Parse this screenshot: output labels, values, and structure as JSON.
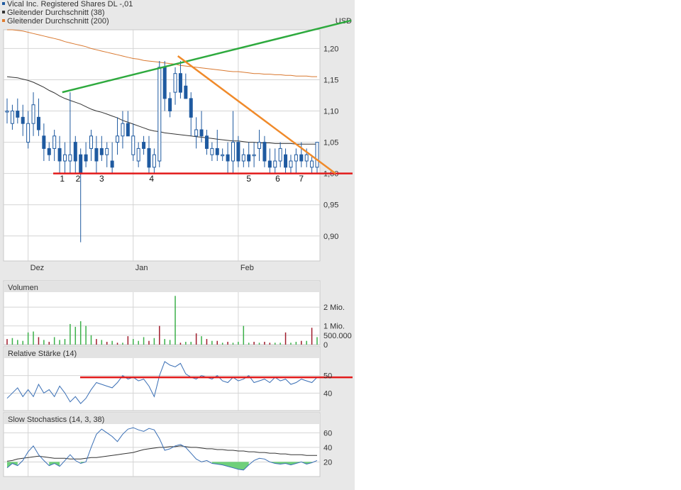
{
  "legend": [
    {
      "label": "Vical Inc. Registered Shares DL -,01",
      "color": "#1f5aa0"
    },
    {
      "label": "Gleitender Durchschnitt (38)",
      "color": "#333333"
    },
    {
      "label": "Gleitender Durchschnitt (200)",
      "color": "#e07b2e"
    }
  ],
  "currency": "USD",
  "colors": {
    "price": "#1f5aa0",
    "ma38": "#333333",
    "ma200": "#d9782f",
    "trend_green": "#2eaa3e",
    "trend_orange": "#f08a2a",
    "support_red": "#e21b1b",
    "volume_up": "#3cb04a",
    "volume_down": "#a01c2c",
    "rsi": "#3a6fb5",
    "stoch_k": "#3a6fb5",
    "stoch_d": "#333333",
    "stoch_fill": "#6fd07a",
    "panel_bg": "#f0f0f0",
    "grid": "#d4d4d4"
  },
  "chart_data": [
    {
      "type": "candlestick",
      "title": "Vical Inc. Registered Shares DL -,01",
      "x_tick_labels": [
        "Dez",
        "Jan",
        "Feb"
      ],
      "y_ticks": [
        0.9,
        0.95,
        1.0,
        1.05,
        1.1,
        1.15,
        1.2
      ],
      "y_tick_labels": [
        "0,90",
        "0,95",
        "1,00",
        "1,05",
        "1,10",
        "1,15",
        "1,20"
      ],
      "ylim": [
        0.86,
        1.23
      ],
      "n_days": 60,
      "candles": [
        [
          1.1,
          1.12,
          1.08,
          1.1
        ],
        [
          1.08,
          1.11,
          1.07,
          1.1
        ],
        [
          1.1,
          1.12,
          1.08,
          1.09
        ],
        [
          1.09,
          1.11,
          1.06,
          1.08
        ],
        [
          1.05,
          1.1,
          1.04,
          1.08
        ],
        [
          1.08,
          1.13,
          1.06,
          1.11
        ],
        [
          1.09,
          1.12,
          1.06,
          1.07
        ],
        [
          1.06,
          1.08,
          1.02,
          1.04
        ],
        [
          1.04,
          1.05,
          1.02,
          1.03
        ],
        [
          1.04,
          1.07,
          1.02,
          1.06
        ],
        [
          1.04,
          1.06,
          1.0,
          1.02
        ],
        [
          1.02,
          1.05,
          1.0,
          1.03
        ],
        [
          1.02,
          1.13,
          1.0,
          1.03
        ],
        [
          1.05,
          1.06,
          1.0,
          1.02
        ],
        [
          1.03,
          1.04,
          0.89,
          1.0
        ],
        [
          1.03,
          1.05,
          1.01,
          1.02
        ],
        [
          1.04,
          1.07,
          1.02,
          1.06
        ],
        [
          1.04,
          1.06,
          1.0,
          1.02
        ],
        [
          1.04,
          1.06,
          1.02,
          1.03
        ],
        [
          1.03,
          1.05,
          1.01,
          1.04
        ],
        [
          1.02,
          1.05,
          1.0,
          1.01
        ],
        [
          1.05,
          1.09,
          1.03,
          1.06
        ],
        [
          1.06,
          1.1,
          1.04,
          1.08
        ],
        [
          1.08,
          1.1,
          1.06,
          1.06
        ],
        [
          1.03,
          1.08,
          1.02,
          1.06
        ],
        [
          1.02,
          1.05,
          1.01,
          1.04
        ],
        [
          1.05,
          1.06,
          1.03,
          1.04
        ],
        [
          1.04,
          1.06,
          1.0,
          1.01
        ],
        [
          1.01,
          1.04,
          1.0,
          1.03
        ],
        [
          1.02,
          1.18,
          1.01,
          1.17
        ],
        [
          1.17,
          1.18,
          1.1,
          1.12
        ],
        [
          1.12,
          1.13,
          1.09,
          1.1
        ],
        [
          1.13,
          1.17,
          1.11,
          1.16
        ],
        [
          1.16,
          1.18,
          1.12,
          1.13
        ],
        [
          1.14,
          1.16,
          1.12,
          1.12
        ],
        [
          1.12,
          1.13,
          1.06,
          1.09
        ],
        [
          1.06,
          1.09,
          1.04,
          1.07
        ],
        [
          1.07,
          1.1,
          1.05,
          1.06
        ],
        [
          1.06,
          1.07,
          1.03,
          1.04
        ],
        [
          1.03,
          1.05,
          1.02,
          1.04
        ],
        [
          1.04,
          1.07,
          1.02,
          1.03
        ],
        [
          1.03,
          1.04,
          1.02,
          1.03
        ],
        [
          1.03,
          1.05,
          1.0,
          1.02
        ],
        [
          1.02,
          1.1,
          1.0,
          1.05
        ],
        [
          1.05,
          1.06,
          1.01,
          1.02
        ],
        [
          1.02,
          1.04,
          1.01,
          1.03
        ],
        [
          1.03,
          1.05,
          1.01,
          1.02
        ],
        [
          1.03,
          1.05,
          1.01,
          1.03
        ],
        [
          1.04,
          1.07,
          1.02,
          1.05
        ],
        [
          1.05,
          1.06,
          1.01,
          1.02
        ],
        [
          1.02,
          1.04,
          1.0,
          1.01
        ],
        [
          1.01,
          1.04,
          1.0,
          1.02
        ],
        [
          1.02,
          1.05,
          1.01,
          1.04
        ],
        [
          1.03,
          1.04,
          1.0,
          1.01
        ],
        [
          1.01,
          1.03,
          1.0,
          1.02
        ],
        [
          1.02,
          1.04,
          1.0,
          1.03
        ],
        [
          1.03,
          1.05,
          1.01,
          1.02
        ],
        [
          1.02,
          1.04,
          1.01,
          1.03
        ],
        [
          1.01,
          1.03,
          1.0,
          1.02
        ],
        [
          1.01,
          1.05,
          1.0,
          1.05
        ]
      ],
      "ma38": [
        1.155,
        1.154,
        1.153,
        1.151,
        1.149,
        1.146,
        1.142,
        1.138,
        1.133,
        1.129,
        1.124,
        1.12,
        1.117,
        1.114,
        1.111,
        1.107,
        1.103,
        1.1,
        1.098,
        1.095,
        1.092,
        1.089,
        1.085,
        1.082,
        1.079,
        1.076,
        1.073,
        1.07,
        1.068,
        1.067,
        1.065,
        1.064,
        1.063,
        1.062,
        1.061,
        1.06,
        1.059,
        1.058,
        1.057,
        1.056,
        1.055,
        1.054,
        1.053,
        1.052,
        1.052,
        1.051,
        1.05,
        1.05,
        1.049,
        1.049,
        1.049,
        1.048,
        1.048,
        1.048,
        1.048,
        1.047,
        1.047,
        1.047,
        1.047,
        1.047
      ],
      "ma200": [
        1.232,
        1.231,
        1.229,
        1.228,
        1.226,
        1.224,
        1.222,
        1.22,
        1.218,
        1.216,
        1.214,
        1.211,
        1.209,
        1.207,
        1.205,
        1.203,
        1.2,
        1.198,
        1.196,
        1.194,
        1.192,
        1.19,
        1.188,
        1.186,
        1.184,
        1.183,
        1.181,
        1.18,
        1.179,
        1.178,
        1.177,
        1.176,
        1.175,
        1.173,
        1.172,
        1.171,
        1.17,
        1.169,
        1.168,
        1.167,
        1.166,
        1.165,
        1.164,
        1.163,
        1.163,
        1.162,
        1.161,
        1.16,
        1.16,
        1.159,
        1.159,
        1.158,
        1.158,
        1.157,
        1.157,
        1.156,
        1.156,
        1.156,
        1.155,
        1.155
      ],
      "annotations": {
        "numbered_lows": [
          "1",
          "2",
          "3",
          "4",
          "5",
          "6",
          "7"
        ],
        "numbered_low_days": [
          10.5,
          13.5,
          18,
          27.5,
          46,
          51.5,
          56
        ],
        "support_line": {
          "y": 1.0
        },
        "green_trend": {
          "from": [
            10.5,
            1.13
          ],
          "to": [
            65.5,
            1.245
          ]
        },
        "orange_trend": {
          "from": [
            32.5,
            1.188
          ],
          "to": [
            62.5,
            1.0
          ]
        }
      }
    },
    {
      "type": "bar",
      "title": "Volumen",
      "y_ticks": [
        0,
        500000,
        1000000,
        2000000
      ],
      "y_tick_labels": [
        "0",
        "500.000",
        "1 Mio.",
        "2 Mio."
      ],
      "ylim": [
        0,
        2800000
      ],
      "values": [
        300000,
        350000,
        250000,
        200000,
        650000,
        700000,
        400000,
        250000,
        150000,
        400000,
        250000,
        300000,
        1100000,
        950000,
        1250000,
        1000000,
        500000,
        300000,
        250000,
        150000,
        200000,
        100000,
        100000,
        450000,
        300000,
        200000,
        400000,
        200000,
        350000,
        1000000,
        300000,
        250000,
        2600000,
        100000,
        150000,
        150000,
        600000,
        450000,
        300000,
        200000,
        200000,
        100000,
        150000,
        100000,
        150000,
        1000000,
        100000,
        150000,
        100000,
        150000,
        100000,
        100000,
        100000,
        650000,
        100000,
        150000,
        200000,
        200000,
        900000,
        400000
      ],
      "directions": [
        "d",
        "u",
        "u",
        "u",
        "u",
        "u",
        "d",
        "u",
        "d",
        "u",
        "u",
        "u",
        "u",
        "u",
        "u",
        "u",
        "u",
        "d",
        "u",
        "d",
        "u",
        "d",
        "u",
        "d",
        "u",
        "u",
        "u",
        "d",
        "u",
        "d",
        "u",
        "u",
        "u",
        "d",
        "u",
        "u",
        "d",
        "u",
        "d",
        "u",
        "d",
        "u",
        "d",
        "u",
        "u",
        "u",
        "u",
        "d",
        "u",
        "d",
        "d",
        "u",
        "u",
        "d",
        "u",
        "u",
        "d",
        "u",
        "d",
        "u"
      ]
    },
    {
      "type": "line",
      "title": "Relative Stärke (14)",
      "y_ticks": [
        40,
        50
      ],
      "y_tick_labels": [
        "40",
        "50"
      ],
      "ylim": [
        30,
        60
      ],
      "values": [
        37,
        40,
        43,
        38,
        42,
        38,
        45,
        40,
        42,
        38,
        44,
        40,
        35,
        38,
        34,
        37,
        42,
        46,
        45,
        44,
        43,
        46,
        50,
        48,
        49,
        47,
        48,
        44,
        38,
        50,
        58,
        56,
        55,
        57,
        51,
        49,
        48,
        50,
        49,
        48,
        50,
        47,
        46,
        49,
        47,
        48,
        50,
        46,
        47,
        48,
        46,
        49,
        47,
        48,
        45,
        46,
        48,
        47,
        46,
        49
      ],
      "reference_line": 49
    },
    {
      "type": "line",
      "title": "Slow Stochastics (14, 3, 38)",
      "y_ticks": [
        20,
        40,
        60
      ],
      "y_tick_labels": [
        "20",
        "40",
        "60"
      ],
      "ylim": [
        0,
        72
      ],
      "k": [
        12,
        18,
        15,
        22,
        34,
        42,
        30,
        22,
        15,
        18,
        14,
        22,
        30,
        22,
        18,
        20,
        40,
        58,
        65,
        60,
        55,
        48,
        58,
        65,
        67,
        64,
        62,
        66,
        64,
        52,
        36,
        38,
        42,
        44,
        40,
        32,
        24,
        20,
        22,
        18,
        17,
        16,
        14,
        12,
        10,
        9,
        16,
        22,
        25,
        24,
        20,
        18,
        17,
        18,
        16,
        18,
        20,
        17,
        19,
        22
      ],
      "d": [
        21,
        22,
        24,
        25,
        26,
        27,
        28,
        27,
        26,
        25,
        25,
        25,
        24,
        24,
        24,
        25,
        26,
        26,
        27,
        28,
        29,
        30,
        31,
        32,
        33,
        35,
        37,
        38,
        39,
        40,
        40,
        41,
        41,
        42,
        41,
        40,
        40,
        39,
        38,
        38,
        37,
        37,
        36,
        36,
        35,
        35,
        34,
        34,
        33,
        33,
        32,
        32,
        31,
        31,
        30,
        30,
        30,
        29,
        29,
        29
      ],
      "fill_below": 20
    }
  ]
}
